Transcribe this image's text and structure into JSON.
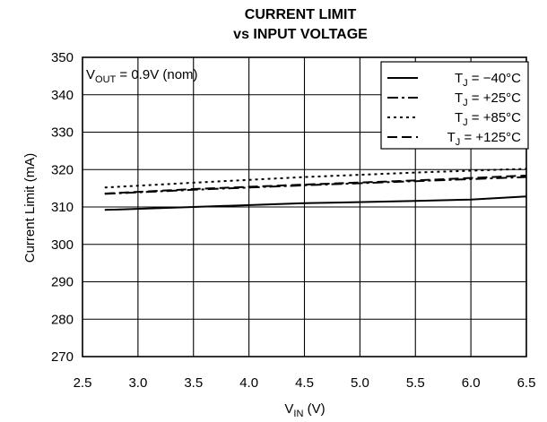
{
  "chart_data": {
    "type": "line",
    "title_line1": "CURRENT LIMIT",
    "title_line2": "vs INPUT VOLTAGE",
    "xlabel": {
      "main": "V",
      "sub": "IN",
      "rest": " (V)"
    },
    "ylabel": "Current Limit (mA)",
    "xlim": [
      2.5,
      6.5
    ],
    "ylim": [
      270,
      350
    ],
    "xticks": [
      2.5,
      3.0,
      3.5,
      4.0,
      4.5,
      5.0,
      5.5,
      6.0,
      6.5
    ],
    "xtick_labels": [
      "2.5",
      "3.0",
      "3.5",
      "4.0",
      "4.5",
      "5.0",
      "5.5",
      "6.0",
      "6.5"
    ],
    "yticks": [
      270,
      280,
      290,
      300,
      310,
      320,
      330,
      340,
      350
    ],
    "ytick_labels": [
      "270",
      "280",
      "290",
      "300",
      "310",
      "320",
      "330",
      "340",
      "350"
    ],
    "grid": true,
    "legend_position": "top-right",
    "annotation": {
      "main": "V",
      "sub": "OUT",
      "rest": " = 0.9V (nom)"
    },
    "series": [
      {
        "name": "T_J = −40°C",
        "legend_main": "T",
        "legend_sub": "J",
        "legend_rest": " = −40°C",
        "dash": "solid",
        "x": [
          2.7,
          3.5,
          4.5,
          5.5,
          6.0,
          6.5
        ],
        "y": [
          309.2,
          310.0,
          311.0,
          311.6,
          312.0,
          312.8
        ]
      },
      {
        "name": "T_J = +25°C",
        "legend_main": "T",
        "legend_sub": "J",
        "legend_rest": " = +25°C",
        "dash": "dashdot",
        "x": [
          2.7,
          3.5,
          4.5,
          5.5,
          6.5
        ],
        "y": [
          313.5,
          314.6,
          315.8,
          316.9,
          318.0
        ]
      },
      {
        "name": "T_J = +85°C",
        "legend_main": "T",
        "legend_sub": "J",
        "legend_rest": " = +85°C",
        "dash": "dotted",
        "x": [
          2.7,
          3.5,
          4.5,
          5.5,
          6.5
        ],
        "y": [
          315.2,
          316.5,
          318.0,
          319.2,
          320.2
        ]
      },
      {
        "name": "T_J = +125°C",
        "legend_main": "T",
        "legend_sub": "J",
        "legend_rest": " = +125°C",
        "dash": "dashed",
        "x": [
          2.7,
          3.5,
          4.5,
          5.5,
          6.5
        ],
        "y": [
          313.6,
          314.8,
          316.0,
          317.1,
          318.4
        ]
      }
    ]
  }
}
